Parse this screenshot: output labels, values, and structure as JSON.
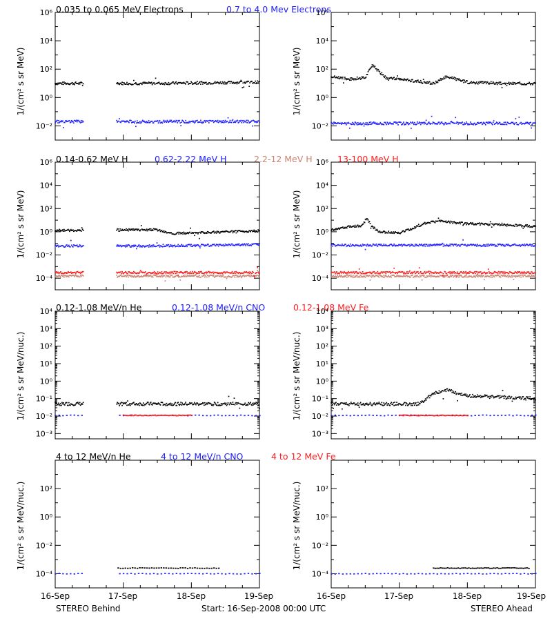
{
  "colors": {
    "black": "#000000",
    "blue": "#1c1cff",
    "salmon": "#c8826e",
    "red": "#ff1c1c"
  },
  "rows": [
    {
      "headers": [
        {
          "text": "0.035 to 0.065 MeV Electrons",
          "color": "#000000"
        },
        {
          "text": "0.7 to 4.0 Mev Electrons",
          "color": "#1c1cff"
        }
      ],
      "ylabel_left": "1/(cm² s sr MeV)",
      "ylabel_right": "1/(cm² s sr MeV)"
    },
    {
      "headers": [
        {
          "text": "0.14-0.62 MeV H",
          "color": "#000000"
        },
        {
          "text": "0.62-2.22 MeV H",
          "color": "#1c1cff"
        },
        {
          "text": "2.2-12 MeV H",
          "color": "#c8826e"
        },
        {
          "text": "13-100 MeV H",
          "color": "#ff1c1c"
        }
      ],
      "ylabel_left": "1/(cm² s sr MeV)",
      "ylabel_right": "1/(cm² s sr MeV)"
    },
    {
      "headers": [
        {
          "text": "0.12-1.08 MeV/n He",
          "color": "#000000"
        },
        {
          "text": "0.12-1.08 MeV/n CNO",
          "color": "#1c1cff"
        },
        {
          "text": "0.12-1.08 MeV Fe",
          "color": "#ff1c1c"
        }
      ],
      "ylabel_left": "1/(cm² s sr MeV/nuc.)",
      "ylabel_right": "1/(cm² s sr MeV/nuc.)"
    },
    {
      "headers": [
        {
          "text": "4 to 12 MeV/n He",
          "color": "#000000"
        },
        {
          "text": "4 to 12 MeV/n CNO",
          "color": "#1c1cff"
        },
        {
          "text": "4 to 12 MeV Fe",
          "color": "#ff1c1c"
        }
      ],
      "ylabel_left": "1/(cm² s sr MeV/nuc.)",
      "ylabel_right": "1/(cm² s sr MeV/nuc.)"
    }
  ],
  "x_tick_labels": [
    "16-Sep",
    "17-Sep",
    "18-Sep",
    "19-Sep"
  ],
  "footer": {
    "left": "STEREO Behind",
    "center": "Start: 16-Sep-2008 00:00 UTC",
    "right": "STEREO Ahead"
  },
  "chart_data": [
    {
      "type": "scatter",
      "panel": "STEREO Behind electrons",
      "scale": "log",
      "x_unit": "days since 16-Sep-2008 00:00 UTC",
      "xlim": [
        0,
        3
      ],
      "ylim": [
        0.001,
        1000000
      ],
      "y_tick_labels": [
        "10⁻²",
        "10⁰",
        "10²",
        "10⁴",
        "10⁶"
      ],
      "data_gaps": [
        [
          0.42,
          0.9
        ]
      ],
      "series": [
        {
          "name": "0.035 to 0.065 MeV Electrons",
          "color": "#000000",
          "x": [
            0,
            1.5,
            3
          ],
          "y": [
            10,
            10,
            12
          ]
        },
        {
          "name": "0.7 to 4.0 Mev Electrons",
          "color": "#1c1cff",
          "x": [
            0,
            1.5,
            3
          ],
          "y": [
            0.02,
            0.02,
            0.02
          ]
        }
      ]
    },
    {
      "type": "scatter",
      "panel": "STEREO Ahead electrons",
      "scale": "log",
      "x_unit": "days since 16-Sep-2008 00:00 UTC",
      "xlim": [
        0,
        3
      ],
      "ylim": [
        0.001,
        1000000
      ],
      "y_tick_labels": [
        "10⁻²",
        "10⁰",
        "10²",
        "10⁴",
        "10⁶"
      ],
      "series": [
        {
          "name": "0.035 to 0.065 MeV Electrons",
          "color": "#000000",
          "x": [
            0,
            0.25,
            0.5,
            0.6,
            0.8,
            1.2,
            1.5,
            1.7,
            2.0,
            2.5,
            3.0
          ],
          "y": [
            30,
            20,
            25,
            200,
            25,
            15,
            10,
            30,
            12,
            10,
            10
          ]
        },
        {
          "name": "0.7 to 4.0 Mev Electrons",
          "color": "#1c1cff",
          "x": [
            0,
            1.5,
            3
          ],
          "y": [
            0.015,
            0.015,
            0.015
          ]
        }
      ]
    },
    {
      "type": "scatter",
      "panel": "STEREO Behind protons",
      "scale": "log",
      "x_unit": "days since 16-Sep-2008 00:00 UTC",
      "xlim": [
        0,
        3
      ],
      "ylim": [
        1e-05,
        1000000
      ],
      "y_tick_labels": [
        "10⁻⁴",
        "10⁻²",
        "10⁰",
        "10²",
        "10⁴",
        "10⁶"
      ],
      "data_gaps": [
        [
          0.42,
          0.9
        ]
      ],
      "series": [
        {
          "name": "0.14-0.62 MeV H",
          "color": "#000000",
          "x": [
            0,
            1.5,
            1.7,
            2.0,
            3.0
          ],
          "y": [
            1.3,
            1.5,
            0.7,
            0.8,
            1.2
          ]
        },
        {
          "name": "0.62-2.22 MeV H",
          "color": "#1c1cff",
          "x": [
            0,
            1.5,
            3
          ],
          "y": [
            0.06,
            0.06,
            0.08
          ]
        },
        {
          "name": "2.2-12 MeV H",
          "color": "#c8826e",
          "x": [
            0,
            1.5,
            3
          ],
          "y": [
            0.00015,
            0.00015,
            0.00015
          ]
        },
        {
          "name": "13-100 MeV H",
          "color": "#ff1c1c",
          "x": [
            0,
            1.5,
            3
          ],
          "y": [
            0.0003,
            0.0003,
            0.0003
          ]
        }
      ]
    },
    {
      "type": "scatter",
      "panel": "STEREO Ahead protons",
      "scale": "log",
      "x_unit": "days since 16-Sep-2008 00:00 UTC",
      "xlim": [
        0,
        3
      ],
      "ylim": [
        1e-05,
        1000000
      ],
      "y_tick_labels": [
        "10⁻⁴",
        "10⁻²",
        "10⁰",
        "10²",
        "10⁴",
        "10⁶"
      ],
      "series": [
        {
          "name": "0.14-0.62 MeV H",
          "color": "#000000",
          "x": [
            0,
            0.3,
            0.45,
            0.52,
            0.6,
            0.7,
            1.0,
            1.2,
            1.4,
            1.6,
            2.0,
            2.5,
            3.0
          ],
          "y": [
            1.5,
            3,
            3,
            15,
            3,
            1,
            0.8,
            2,
            6,
            8,
            5,
            4,
            3
          ]
        },
        {
          "name": "0.62-2.22 MeV H",
          "color": "#1c1cff",
          "x": [
            0,
            1.5,
            3
          ],
          "y": [
            0.07,
            0.07,
            0.07
          ]
        },
        {
          "name": "2.2-12 MeV H",
          "color": "#c8826e",
          "x": [
            0,
            1.5,
            3
          ],
          "y": [
            0.00015,
            0.00015,
            0.00015
          ]
        },
        {
          "name": "13-100 MeV H",
          "color": "#ff1c1c",
          "x": [
            0,
            1.5,
            3
          ],
          "y": [
            0.0003,
            0.0003,
            0.0003
          ]
        }
      ]
    },
    {
      "type": "scatter",
      "panel": "STEREO Behind heavy ions low",
      "scale": "log",
      "x_unit": "days since 16-Sep-2008 00:00 UTC",
      "xlim": [
        0,
        3
      ],
      "ylim": [
        0.0005,
        10000
      ],
      "y_tick_labels": [
        "10⁻³",
        "10⁻²",
        "10⁻¹",
        "10⁰",
        "10¹",
        "10²",
        "10³",
        "10⁴"
      ],
      "data_gaps": [
        [
          0.42,
          0.9
        ]
      ],
      "series": [
        {
          "name": "0.12-1.08 MeV/n He",
          "color": "#000000",
          "x": [
            0,
            1.5,
            3
          ],
          "y": [
            0.05,
            0.05,
            0.05
          ]
        },
        {
          "name": "0.12-1.08 MeV/n CNO",
          "color": "#1c1cff",
          "x": [
            0,
            1.5,
            3
          ],
          "y": [
            0.011,
            0.011,
            0.011
          ]
        },
        {
          "name": "0.12-1.08 MeV Fe",
          "color": "#ff1c1c",
          "x": [
            1.0,
            1.5,
            2.0
          ],
          "y": [
            0.011,
            0.011,
            0.011
          ]
        }
      ]
    },
    {
      "type": "scatter",
      "panel": "STEREO Ahead heavy ions low",
      "scale": "log",
      "x_unit": "days since 16-Sep-2008 00:00 UTC",
      "xlim": [
        0,
        3
      ],
      "ylim": [
        0.0005,
        10000
      ],
      "y_tick_labels": [
        "10⁻³",
        "10⁻²",
        "10⁻¹",
        "10⁰",
        "10¹",
        "10²",
        "10³",
        "10⁴"
      ],
      "series": [
        {
          "name": "0.12-1.08 MeV/n He",
          "color": "#000000",
          "x": [
            0,
            1.3,
            1.5,
            1.7,
            2.0,
            2.5,
            3.0
          ],
          "y": [
            0.05,
            0.05,
            0.2,
            0.3,
            0.15,
            0.12,
            0.1
          ]
        },
        {
          "name": "0.12-1.08 MeV/n CNO",
          "color": "#1c1cff",
          "x": [
            0,
            1.5,
            3
          ],
          "y": [
            0.011,
            0.011,
            0.011
          ]
        },
        {
          "name": "0.12-1.08 MeV Fe",
          "color": "#ff1c1c",
          "x": [
            1.0,
            1.5,
            2.0
          ],
          "y": [
            0.011,
            0.011,
            0.011
          ]
        }
      ]
    },
    {
      "type": "scatter",
      "panel": "STEREO Behind heavy ions high",
      "scale": "log",
      "x_unit": "days since 16-Sep-2008 00:00 UTC",
      "xlim": [
        0,
        3
      ],
      "ylim": [
        1e-05,
        10000
      ],
      "y_tick_labels": [
        "10⁻⁴",
        "10⁻²",
        "10⁰",
        "10²"
      ],
      "data_gaps": [
        [
          0.42,
          0.9
        ]
      ],
      "series": [
        {
          "name": "4 to 12 MeV/n He",
          "color": "#000000",
          "x": [
            0.5,
            1.5,
            2.4
          ],
          "y": [
            0.00025,
            0.00025,
            0.00025
          ]
        },
        {
          "name": "4 to 12 MeV/n CNO",
          "color": "#1c1cff",
          "x": [
            0,
            1.5,
            3
          ],
          "y": [
            0.0001,
            0.0001,
            0.0001
          ]
        },
        {
          "name": "4 to 12 MeV Fe",
          "color": "#ff1c1c",
          "x": [],
          "y": []
        }
      ]
    },
    {
      "type": "scatter",
      "panel": "STEREO Ahead heavy ions high",
      "scale": "log",
      "x_unit": "days since 16-Sep-2008 00:00 UTC",
      "xlim": [
        0,
        3
      ],
      "ylim": [
        1e-05,
        10000
      ],
      "y_tick_labels": [
        "10⁻⁴",
        "10⁻²",
        "10⁰",
        "10²"
      ],
      "series": [
        {
          "name": "4 to 12 MeV/n He",
          "color": "#000000",
          "x": [
            1.5,
            2.0,
            2.9
          ],
          "y": [
            0.00025,
            0.00025,
            0.00025
          ]
        },
        {
          "name": "4 to 12 MeV/n CNO",
          "color": "#1c1cff",
          "x": [
            0,
            1.5,
            3
          ],
          "y": [
            0.0001,
            0.0001,
            0.0001
          ]
        },
        {
          "name": "4 to 12 MeV Fe",
          "color": "#ff1c1c",
          "x": [],
          "y": []
        }
      ]
    }
  ]
}
